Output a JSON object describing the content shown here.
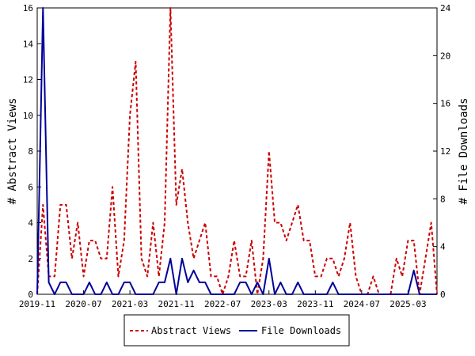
{
  "chart_data": {
    "type": "line",
    "left_axis_title": "# Abstract Views",
    "right_axis_title": "# File Downloads",
    "left_ylim": [
      0,
      16
    ],
    "right_ylim": [
      0,
      24
    ],
    "left_ticks": [
      0,
      2,
      4,
      6,
      8,
      10,
      12,
      14,
      16
    ],
    "right_ticks": [
      0,
      4,
      8,
      12,
      16,
      20,
      24
    ],
    "x_tick_labels": [
      "2019-11",
      "2020-07",
      "2021-03",
      "2021-11",
      "2022-07",
      "2023-03",
      "2023-11",
      "2024-07",
      "2025-03"
    ],
    "x_tick_positions": [
      0,
      8,
      16,
      24,
      32,
      40,
      48,
      56,
      64
    ],
    "x_range": [
      0,
      69
    ],
    "grid": false,
    "legend_position": "bottom",
    "series": [
      {
        "name": "Abstract Views",
        "axis": "left",
        "color": "#cc0000",
        "style": "dashed",
        "values": [
          0,
          5,
          1,
          1,
          5,
          5,
          2,
          4,
          1,
          3,
          3,
          2,
          2,
          6,
          1,
          3,
          10,
          13,
          2,
          1,
          4,
          1,
          4,
          16,
          5,
          7,
          4,
          2,
          3,
          4,
          1,
          1,
          0,
          1,
          3,
          1,
          1,
          3,
          0,
          2,
          8,
          4,
          4,
          3,
          4,
          5,
          3,
          3,
          1,
          1,
          2,
          2,
          1,
          2,
          4,
          1,
          0,
          0,
          1,
          0,
          0,
          0,
          2,
          1,
          3,
          3,
          0,
          2,
          4,
          0
        ]
      },
      {
        "name": "File Downloads",
        "axis": "right",
        "color": "#000099",
        "style": "solid",
        "values": [
          0,
          24,
          1,
          0,
          1,
          1,
          0,
          0,
          0,
          1,
          0,
          0,
          1,
          0,
          0,
          1,
          1,
          0,
          0,
          0,
          0,
          1,
          1,
          3,
          0,
          3,
          1,
          2,
          1,
          1,
          0,
          0,
          0,
          0,
          0,
          1,
          1,
          0,
          1,
          0,
          3,
          0,
          1,
          0,
          0,
          1,
          0,
          0,
          0,
          0,
          0,
          1,
          0,
          0,
          0,
          0,
          0,
          0,
          0,
          0,
          0,
          0,
          0,
          0,
          0,
          2,
          0,
          0,
          0,
          0
        ]
      }
    ]
  }
}
